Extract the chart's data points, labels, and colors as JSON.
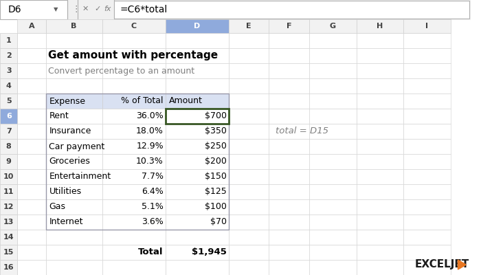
{
  "title": "Get amount with percentage",
  "subtitle": "Convert percentage to an amount",
  "formula_bar_cell": "D6",
  "formula_bar_formula": "=C6*total",
  "col_headers": [
    "A",
    "B",
    "C",
    "D",
    "E",
    "F",
    "G",
    "H",
    "I"
  ],
  "table_headers": [
    "Expense",
    "% of Total",
    "Amount"
  ],
  "expenses": [
    "Rent",
    "Insurance",
    "Car payment",
    "Groceries",
    "Entertainment",
    "Utilities",
    "Gas",
    "Internet"
  ],
  "percentages": [
    "36.0%",
    "18.0%",
    "12.9%",
    "10.3%",
    "7.7%",
    "6.4%",
    "5.1%",
    "3.6%"
  ],
  "amounts": [
    "$700",
    "$350",
    "$250",
    "$200",
    "$150",
    "$125",
    "$100",
    "$70"
  ],
  "total_label": "Total",
  "total_amount": "$1,945",
  "note_text": "total = D15",
  "header_bg": "#d9e1f2",
  "selected_cell_border": "#375623",
  "toolbar_bg": "#f0f0f0",
  "cell_ref_bg": "#ffffff",
  "formula_bg": "#ffffff",
  "grid_color": "#d0d0d0",
  "row_header_bg": "#f2f2f2",
  "col_header_selected_bg": "#8faadc",
  "background": "#ffffff",
  "title_color": "#000000",
  "subtitle_color": "#808080",
  "note_color": "#808080",
  "exceljet_color_orange": "#e87722",
  "exceljet_color_dark": "#1a1a1a"
}
